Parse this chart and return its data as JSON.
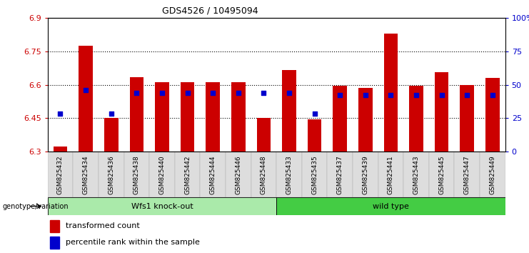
{
  "title": "GDS4526 / 10495094",
  "samples": [
    "GSM825432",
    "GSM825434",
    "GSM825436",
    "GSM825438",
    "GSM825440",
    "GSM825442",
    "GSM825444",
    "GSM825446",
    "GSM825448",
    "GSM825433",
    "GSM825435",
    "GSM825437",
    "GSM825439",
    "GSM825441",
    "GSM825443",
    "GSM825445",
    "GSM825447",
    "GSM825449"
  ],
  "bar_values": [
    6.325,
    6.775,
    6.45,
    6.635,
    6.61,
    6.61,
    6.61,
    6.61,
    6.45,
    6.665,
    6.445,
    6.595,
    6.585,
    6.83,
    6.595,
    6.655,
    6.6,
    6.63
  ],
  "blue_dot_values": [
    6.47,
    6.575,
    6.47,
    6.565,
    6.565,
    6.565,
    6.565,
    6.565,
    6.565,
    6.565,
    6.47,
    6.555,
    6.555,
    6.555,
    6.555,
    6.555,
    6.555,
    6.555
  ],
  "y_min": 6.3,
  "y_max": 6.9,
  "y_ticks_left": [
    6.3,
    6.45,
    6.6,
    6.75,
    6.9
  ],
  "y_ticks_right_vals": [
    0,
    25,
    50,
    75,
    100
  ],
  "y_ticks_right_labels": [
    "0",
    "25",
    "50",
    "75",
    "100%"
  ],
  "group1_label": "Wfs1 knock-out",
  "group2_label": "wild type",
  "group1_count": 9,
  "group2_count": 9,
  "bar_color": "#cc0000",
  "dot_color": "#0000cc",
  "bar_width": 0.55,
  "group1_bg": "#aaeaaa",
  "group2_bg": "#44cc44",
  "left_color": "#cc0000",
  "right_color": "#0000cc",
  "legend_bar_label": "transformed count",
  "legend_dot_label": "percentile rank within the sample",
  "genotype_label": "genotype/variation"
}
